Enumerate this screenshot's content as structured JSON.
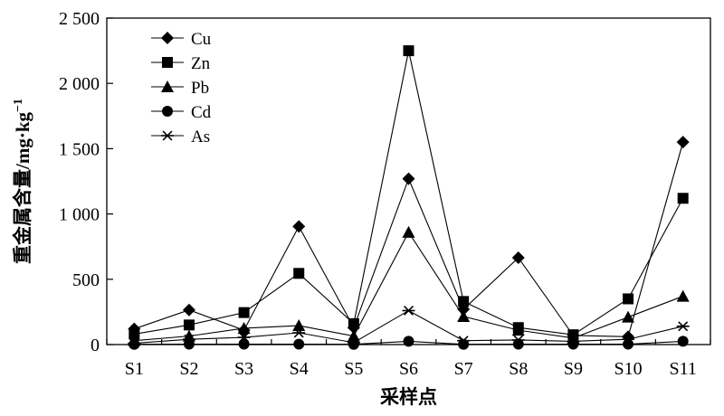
{
  "chart_data": {
    "type": "line",
    "title": "",
    "xlabel": "采样点",
    "ylabel": "重金属含量/mg·kg",
    "ylabel_sup": "−1",
    "ylim": [
      0,
      2500
    ],
    "yticks": [
      0,
      500,
      1000,
      1500,
      2000,
      2500
    ],
    "ytick_labels": [
      "0",
      "500",
      "1 000",
      "1 500",
      "2 000",
      "2 500"
    ],
    "grid": false,
    "legend": "top-left",
    "categories": [
      "S1",
      "S2",
      "S3",
      "S4",
      "S5",
      "S6",
      "S7",
      "S8",
      "S9",
      "S10",
      "S11"
    ],
    "series": [
      {
        "name": "Cu",
        "marker": "diamond",
        "values": [
          120,
          265,
          110,
          905,
          130,
          1270,
          270,
          665,
          70,
          60,
          1550
        ]
      },
      {
        "name": "Zn",
        "marker": "square",
        "values": [
          80,
          150,
          245,
          545,
          160,
          2250,
          330,
          130,
          75,
          350,
          1120
        ]
      },
      {
        "name": "Pb",
        "marker": "triangle",
        "values": [
          30,
          65,
          125,
          145,
          65,
          860,
          215,
          110,
          50,
          210,
          370
        ]
      },
      {
        "name": "Cd",
        "marker": "circle",
        "values": [
          2,
          3,
          3,
          3,
          2,
          25,
          2,
          3,
          3,
          3,
          25
        ]
      },
      {
        "name": "As",
        "marker": "asterisk",
        "values": [
          10,
          40,
          55,
          90,
          15,
          260,
          30,
          35,
          25,
          40,
          140
        ]
      }
    ]
  }
}
